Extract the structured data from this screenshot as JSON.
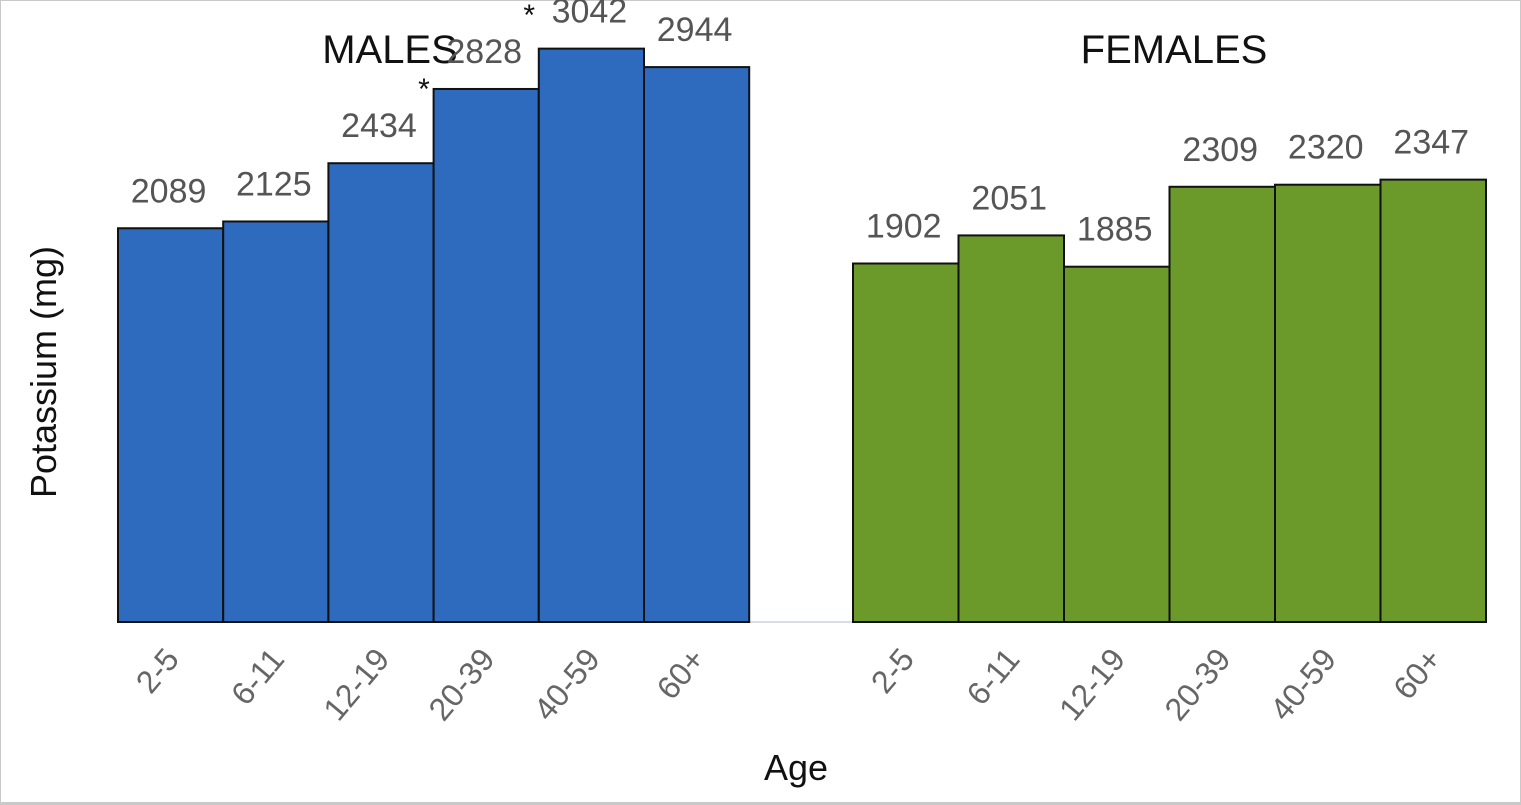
{
  "chart_data": {
    "type": "bar",
    "xlabel": "Age",
    "ylabel": "Potassium (mg)",
    "ylim": [
      0,
      3300
    ],
    "grid": false,
    "legend": "none",
    "panels": [
      {
        "title": "MALES",
        "color": "#2e6bbf",
        "categories": [
          "2-5",
          "6-11",
          "12-19",
          "20-39",
          "40-59",
          "60+"
        ],
        "values": [
          2089,
          2125,
          2434,
          2828,
          3042,
          2944
        ],
        "labels": [
          "2089",
          "2125",
          "2434",
          "2828",
          "3042",
          "2944"
        ],
        "marks": [
          "",
          "",
          "*",
          "*",
          "*",
          "*"
        ]
      },
      {
        "title": "FEMALES",
        "color": "#6b9a2a",
        "categories": [
          "2-5",
          "6-11",
          "12-19",
          "20-39",
          "40-59",
          "60+"
        ],
        "values": [
          1902,
          2051,
          1885,
          2309,
          2320,
          2347
        ],
        "labels": [
          "1902",
          "2051",
          "1885",
          "2309",
          "2320",
          "2347"
        ],
        "marks": [
          "",
          "",
          "",
          "",
          "",
          ""
        ]
      }
    ]
  }
}
